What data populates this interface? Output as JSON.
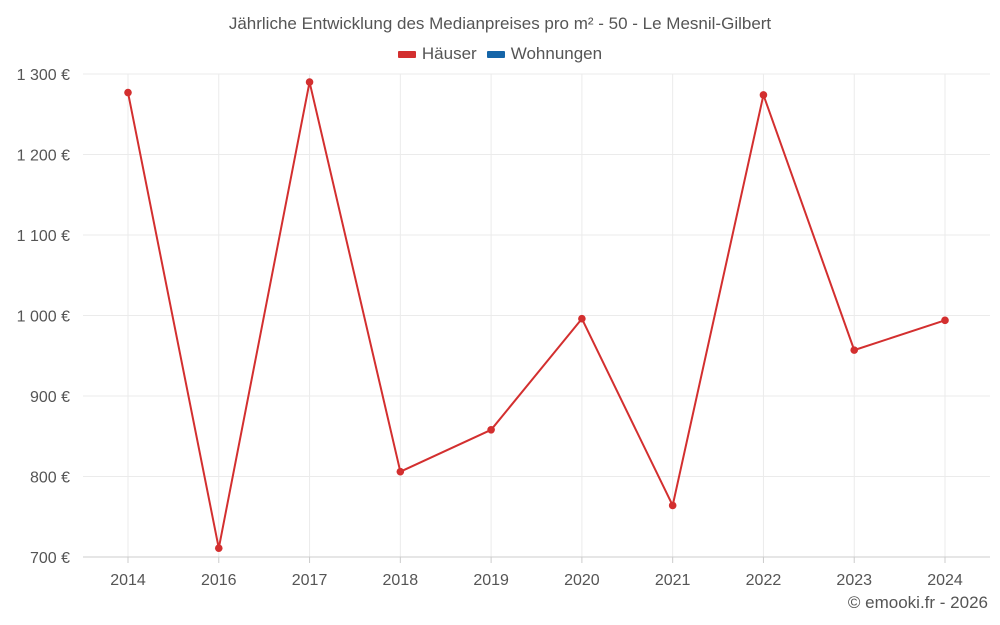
{
  "chart_data": {
    "type": "line",
    "title": "Jährliche Entwicklung des Medianpreises pro m² - 50 - Le Mesnil-Gilbert",
    "categories": [
      "2014",
      "2016",
      "2017",
      "2018",
      "2019",
      "2020",
      "2021",
      "2022",
      "2023",
      "2024"
    ],
    "series": [
      {
        "name": "Häuser",
        "color": "#d32f2f",
        "values": [
          1277,
          711,
          1290,
          806,
          858,
          996,
          764,
          1274,
          957,
          994
        ]
      }
    ],
    "legend": [
      {
        "name": "Häuser",
        "color": "#d32f2f"
      },
      {
        "name": "Wohnungen",
        "color": "#1565a8"
      }
    ],
    "ylim": [
      700,
      1300
    ],
    "yticks": [
      700,
      800,
      900,
      1000,
      1100,
      1200,
      1300
    ],
    "ytick_labels": [
      "700 €",
      "800 €",
      "900 €",
      "1 000 €",
      "1 100 €",
      "1 200 €",
      "1 300 €"
    ],
    "grid": true,
    "legend_position": "top-center"
  },
  "copyright": "© emooki.fr - 2026"
}
